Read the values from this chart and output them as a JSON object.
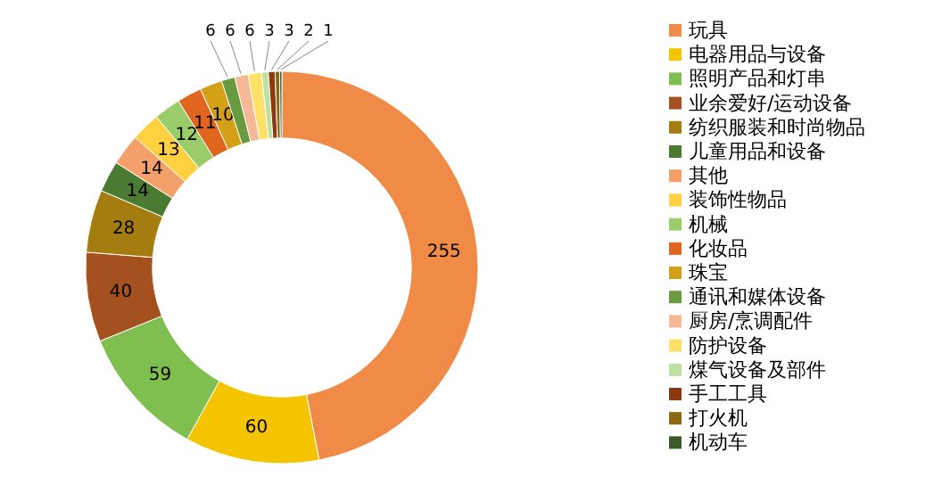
{
  "chart_data": {
    "type": "donut",
    "data_labels": true,
    "legend": "right",
    "categories": [
      "玩具",
      "电器用品与设备",
      "照明产品和灯串",
      "业余爱好/运动设备",
      "纺织服装和时尚物品",
      "儿童用品和设备",
      "其他",
      "装饰性物品",
      "机械",
      "化妆品",
      "珠宝",
      "通讯和媒体设备",
      "厨房/烹调配件",
      "防护设备",
      "煤气设备及部件",
      "手工工具",
      "打火机",
      "机动车"
    ],
    "values": [
      255,
      60,
      59,
      40,
      28,
      14,
      14,
      13,
      12,
      11,
      10,
      6,
      6,
      6,
      3,
      3,
      2,
      1
    ],
    "colors": [
      "#ef8a47",
      "#f5c400",
      "#7fbf4f",
      "#a5501f",
      "#a57c0f",
      "#4b7a33",
      "#f4a06a",
      "#ffd040",
      "#9acd6a",
      "#e06620",
      "#d4a017",
      "#6a9a3f",
      "#f7b896",
      "#ffe066",
      "#bde0a0",
      "#8b3a10",
      "#8b6914",
      "#3a5a2a"
    ]
  }
}
